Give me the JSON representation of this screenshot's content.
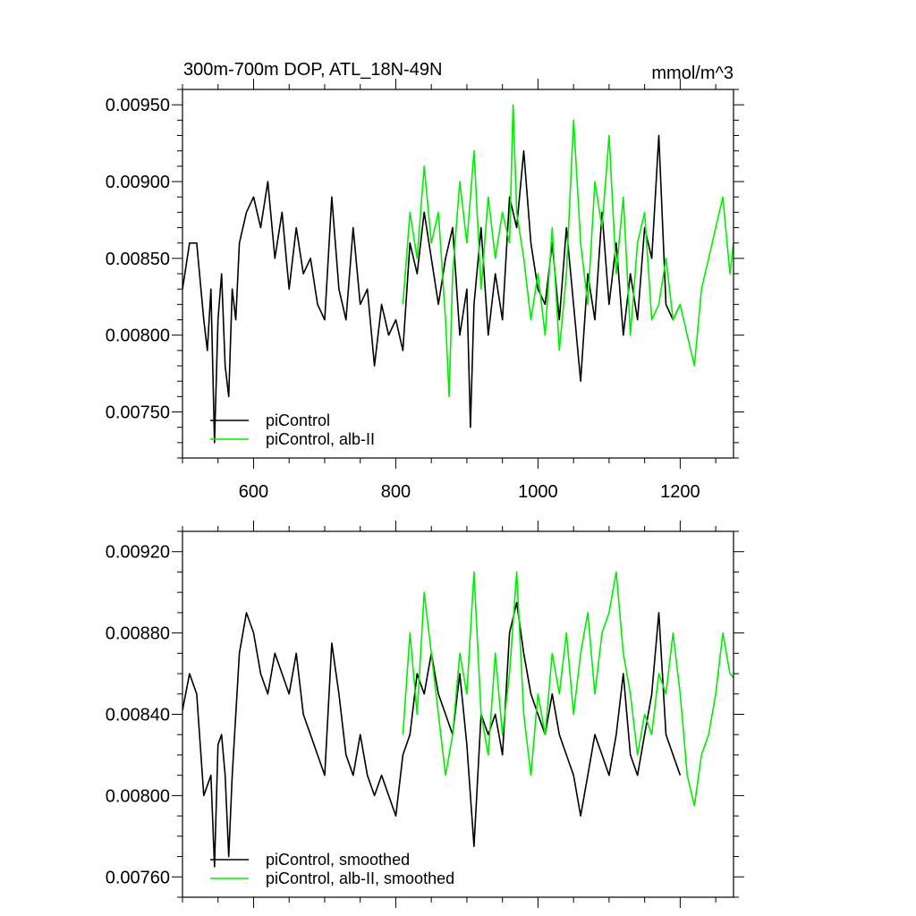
{
  "chart_data": [
    {
      "type": "line",
      "title": "300m-700m DOP, ATL_18N-49N",
      "units": "mmol/m^3",
      "xlim": [
        500,
        1275
      ],
      "ylim": [
        0.0072,
        0.0096
      ],
      "xticks": [
        600,
        800,
        1000,
        1200
      ],
      "xtick_labels": [
        "600",
        "800",
        "1000",
        "1200"
      ],
      "yticks": [
        0.0075,
        0.008,
        0.0085,
        0.009,
        0.0095
      ],
      "ytick_labels": [
        "0.00750",
        "0.00800",
        "0.00850",
        "0.00900",
        "0.00950"
      ],
      "grid": false,
      "legend_position": "bottom-left",
      "series": [
        {
          "name": "piControl",
          "color": "#000000",
          "x": [
            500,
            510,
            520,
            530,
            535,
            540,
            545,
            550,
            555,
            560,
            565,
            570,
            575,
            580,
            590,
            600,
            610,
            620,
            630,
            640,
            650,
            660,
            670,
            680,
            690,
            700,
            710,
            720,
            730,
            740,
            750,
            760,
            770,
            780,
            790,
            800,
            810,
            820,
            830,
            840,
            850,
            860,
            870,
            880,
            890,
            900,
            905,
            910,
            920,
            930,
            940,
            950,
            960,
            970,
            980,
            990,
            1000,
            1010,
            1020,
            1030,
            1040,
            1050,
            1060,
            1070,
            1080,
            1090,
            1100,
            1110,
            1120,
            1130,
            1140,
            1150,
            1160,
            1170,
            1180,
            1190,
            1200
          ],
          "y": [
            0.0083,
            0.0086,
            0.0086,
            0.0081,
            0.0079,
            0.0083,
            0.0073,
            0.0081,
            0.0084,
            0.0078,
            0.0076,
            0.0083,
            0.0081,
            0.0086,
            0.0088,
            0.0089,
            0.0087,
            0.009,
            0.0085,
            0.0088,
            0.0083,
            0.0087,
            0.0084,
            0.0085,
            0.0082,
            0.0081,
            0.0089,
            0.0083,
            0.0081,
            0.0087,
            0.0082,
            0.0083,
            0.0078,
            0.0082,
            0.008,
            0.0081,
            0.0079,
            0.0086,
            0.0084,
            0.0088,
            0.0085,
            0.0082,
            0.0085,
            0.0087,
            0.008,
            0.0083,
            0.0074,
            0.0082,
            0.0087,
            0.008,
            0.0084,
            0.0081,
            0.0089,
            0.0087,
            0.0092,
            0.0086,
            0.0083,
            0.0082,
            0.0086,
            0.0081,
            0.0087,
            0.0082,
            0.0077,
            0.0084,
            0.0081,
            0.0088,
            0.0082,
            0.0086,
            0.008,
            0.0084,
            0.0081,
            0.0087,
            0.0085,
            0.0093,
            0.0082,
            0.0081,
            0.0082
          ]
        },
        {
          "name": "piControl, alb-II",
          "color": "#00ee00",
          "x": [
            810,
            820,
            830,
            840,
            850,
            860,
            870,
            875,
            880,
            890,
            900,
            910,
            920,
            930,
            940,
            950,
            960,
            965,
            970,
            980,
            990,
            1000,
            1010,
            1020,
            1030,
            1040,
            1050,
            1060,
            1070,
            1080,
            1090,
            1100,
            1110,
            1120,
            1130,
            1140,
            1150,
            1160,
            1170,
            1180,
            1190,
            1200,
            1210,
            1220,
            1230,
            1240,
            1250,
            1260,
            1270,
            1275
          ],
          "y": [
            0.0082,
            0.0088,
            0.0085,
            0.0091,
            0.0086,
            0.0088,
            0.0081,
            0.0076,
            0.0084,
            0.009,
            0.0086,
            0.0092,
            0.0083,
            0.0089,
            0.0085,
            0.0088,
            0.0086,
            0.0095,
            0.0088,
            0.0085,
            0.0081,
            0.0084,
            0.008,
            0.0087,
            0.0079,
            0.0084,
            0.0094,
            0.0086,
            0.0082,
            0.009,
            0.0087,
            0.0093,
            0.0084,
            0.0089,
            0.008,
            0.0086,
            0.0088,
            0.0081,
            0.0082,
            0.0085,
            0.0081,
            0.0082,
            0.008,
            0.0078,
            0.0083,
            0.0085,
            0.0087,
            0.0089,
            0.0084,
            0.0086
          ]
        }
      ],
      "legend": [
        "piControl",
        "piControl, alb-II"
      ]
    },
    {
      "type": "line",
      "title": "",
      "xlim": [
        500,
        1275
      ],
      "ylim": [
        0.0075,
        0.0093
      ],
      "xticks": [
        600,
        800,
        1000,
        1200
      ],
      "yticks": [
        0.0076,
        0.008,
        0.0084,
        0.0088,
        0.0092
      ],
      "ytick_labels": [
        "0.00760",
        "0.00800",
        "0.00840",
        "0.00880",
        "0.00920"
      ],
      "grid": false,
      "legend_position": "bottom-left",
      "series": [
        {
          "name": "piControl, smoothed",
          "color": "#000000",
          "x": [
            500,
            510,
            520,
            530,
            540,
            545,
            550,
            555,
            560,
            565,
            570,
            580,
            590,
            600,
            610,
            620,
            630,
            640,
            650,
            660,
            670,
            680,
            690,
            700,
            710,
            720,
            730,
            740,
            750,
            760,
            770,
            780,
            790,
            800,
            810,
            820,
            830,
            840,
            850,
            860,
            870,
            880,
            890,
            900,
            910,
            920,
            930,
            940,
            950,
            960,
            970,
            980,
            990,
            1000,
            1010,
            1020,
            1030,
            1040,
            1050,
            1060,
            1070,
            1080,
            1090,
            1100,
            1110,
            1120,
            1130,
            1140,
            1150,
            1160,
            1170,
            1180,
            1190,
            1200
          ],
          "y": [
            0.00842,
            0.0086,
            0.0085,
            0.008,
            0.0081,
            0.00765,
            0.00825,
            0.0083,
            0.0081,
            0.0077,
            0.0081,
            0.0087,
            0.0089,
            0.0088,
            0.0086,
            0.0085,
            0.0087,
            0.0086,
            0.0085,
            0.0087,
            0.0084,
            0.0083,
            0.0082,
            0.0081,
            0.00875,
            0.0085,
            0.0082,
            0.0081,
            0.0083,
            0.0081,
            0.008,
            0.0081,
            0.008,
            0.0079,
            0.0082,
            0.0083,
            0.0086,
            0.0085,
            0.0087,
            0.0085,
            0.0084,
            0.0083,
            0.0086,
            0.00825,
            0.00775,
            0.0084,
            0.0083,
            0.0084,
            0.0082,
            0.0088,
            0.00895,
            0.0087,
            0.0085,
            0.0084,
            0.0083,
            0.0085,
            0.0083,
            0.0082,
            0.0081,
            0.0079,
            0.0081,
            0.0083,
            0.0082,
            0.0081,
            0.0083,
            0.0086,
            0.0082,
            0.0081,
            0.0083,
            0.0085,
            0.0089,
            0.0083,
            0.0082,
            0.0081
          ]
        },
        {
          "name": "piControl, alb-II, smoothed",
          "color": "#00ee00",
          "x": [
            810,
            820,
            830,
            840,
            850,
            860,
            870,
            880,
            890,
            900,
            910,
            920,
            930,
            940,
            950,
            960,
            970,
            980,
            990,
            1000,
            1010,
            1020,
            1030,
            1040,
            1050,
            1060,
            1070,
            1080,
            1090,
            1100,
            1110,
            1120,
            1130,
            1140,
            1150,
            1160,
            1170,
            1180,
            1190,
            1200,
            1210,
            1220,
            1230,
            1240,
            1250,
            1260,
            1270,
            1275
          ],
          "y": [
            0.0083,
            0.0088,
            0.0084,
            0.009,
            0.0087,
            0.0084,
            0.0081,
            0.0083,
            0.0087,
            0.0085,
            0.0091,
            0.0084,
            0.0082,
            0.0087,
            0.0083,
            0.0086,
            0.0091,
            0.0084,
            0.0081,
            0.0085,
            0.0083,
            0.0087,
            0.0085,
            0.0088,
            0.0084,
            0.0087,
            0.0089,
            0.0085,
            0.0088,
            0.0089,
            0.0091,
            0.0087,
            0.0085,
            0.0082,
            0.0084,
            0.0083,
            0.0086,
            0.0085,
            0.0088,
            0.0085,
            0.0081,
            0.00795,
            0.0082,
            0.0083,
            0.0085,
            0.0088,
            0.0086,
            0.00858
          ]
        }
      ],
      "legend": [
        "piControl, smoothed",
        "piControl, alb-II, smoothed"
      ]
    }
  ]
}
